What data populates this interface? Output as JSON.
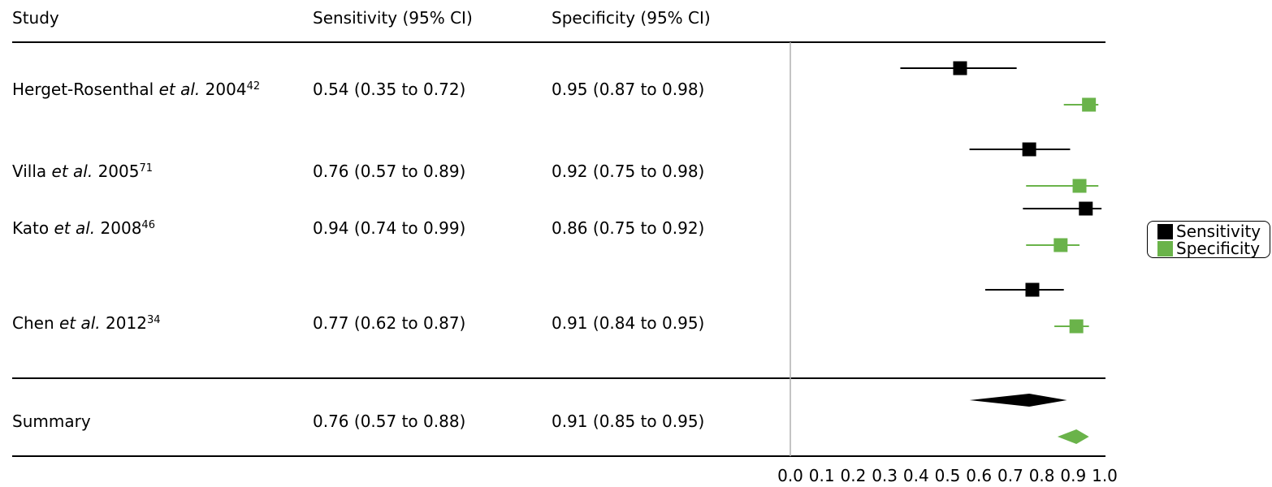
{
  "headers": {
    "study": "Study",
    "sensitivity": "Sensitivity (95% CI)",
    "specificity": "Specificity (95% CI)"
  },
  "rows": [
    {
      "author": "Herget-Rosenthal",
      "etal": "et al.",
      "year": "2004",
      "ref": "42",
      "sensitivity_text": "0.54 (0.35 to 0.72)",
      "specificity_text": "0.95 (0.87 to 0.98)"
    },
    {
      "author": "Villa",
      "etal": "et al.",
      "year": "2005",
      "ref": "71",
      "sensitivity_text": "0.76 (0.57 to 0.89)",
      "specificity_text": "0.92 (0.75 to 0.98)"
    },
    {
      "author": "Kato",
      "etal": "et al.",
      "year": "2008",
      "ref": "46",
      "sensitivity_text": "0.94 (0.74 to 0.99)",
      "specificity_text": "0.86 (0.75 to 0.92)"
    },
    {
      "author": "Chen",
      "etal": "et al.",
      "year": "2012",
      "ref": "34",
      "sensitivity_text": "0.77 (0.62 to 0.87)",
      "specificity_text": "0.91 (0.84 to 0.95)"
    }
  ],
  "summary": {
    "label": "Summary",
    "sensitivity_text": "0.76 (0.57 to 0.88)",
    "specificity_text": "0.91 (0.85 to 0.95)"
  },
  "legend": [
    "Sensitivity",
    "Specificity"
  ],
  "colors": {
    "sensitivity": "#000000",
    "specificity": "#6ab34a",
    "reference_line": "#b0b0b0"
  },
  "chart_data": {
    "type": "forest",
    "xlim": [
      0,
      1
    ],
    "xticks": [
      "0.0",
      "0.1",
      "0.2",
      "0.3",
      "0.4",
      "0.5",
      "0.6",
      "0.7",
      "0.8",
      "0.9",
      "1.0"
    ],
    "series": [
      {
        "name": "Sensitivity",
        "points": [
          {
            "est": 0.54,
            "lo": 0.35,
            "hi": 0.72
          },
          {
            "est": 0.76,
            "lo": 0.57,
            "hi": 0.89
          },
          {
            "est": 0.94,
            "lo": 0.74,
            "hi": 0.99
          },
          {
            "est": 0.77,
            "lo": 0.62,
            "hi": 0.87
          }
        ],
        "summary": {
          "est": 0.76,
          "lo": 0.57,
          "hi": 0.88
        }
      },
      {
        "name": "Specificity",
        "points": [
          {
            "est": 0.95,
            "lo": 0.87,
            "hi": 0.98
          },
          {
            "est": 0.92,
            "lo": 0.75,
            "hi": 0.98
          },
          {
            "est": 0.86,
            "lo": 0.75,
            "hi": 0.92
          },
          {
            "est": 0.91,
            "lo": 0.84,
            "hi": 0.95
          }
        ],
        "summary": {
          "est": 0.91,
          "lo": 0.85,
          "hi": 0.95
        }
      }
    ]
  }
}
